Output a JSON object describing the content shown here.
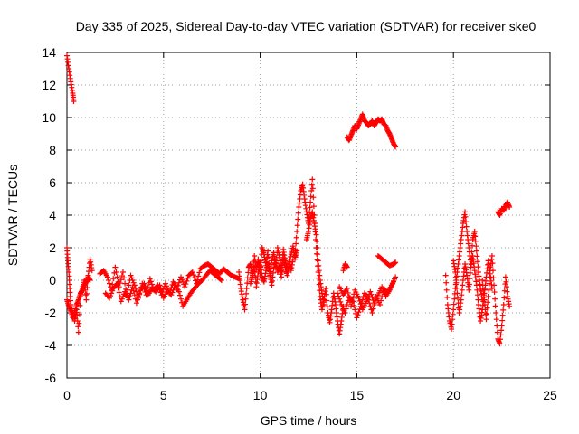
{
  "chart_data": {
    "type": "scatter",
    "title": "Day 335 of 2025, Sidereal Day-to-day VTEC variation (SDTVAR) for receiver ske0",
    "xlabel": "GPS time / hours",
    "ylabel": "SDTVAR / TECUs",
    "xlim": [
      0,
      25
    ],
    "ylim": [
      -6,
      14
    ],
    "x_ticks": [
      0,
      5,
      10,
      15,
      20,
      25
    ],
    "y_ticks": [
      -6,
      -4,
      -2,
      0,
      2,
      4,
      6,
      8,
      10,
      12,
      14
    ],
    "grid": true,
    "marker": "plus",
    "color": "#ff0000",
    "series": [
      {
        "name": "SDTVAR",
        "segments": [
          {
            "x": [
              0.0,
              0.1,
              0.2,
              0.3,
              0.35
            ],
            "y": [
              13.8,
              13.0,
              12.2,
              11.5,
              11.0
            ]
          },
          {
            "x": [
              0.0,
              0.05,
              0.1,
              0.15,
              0.2,
              0.3,
              0.4,
              0.5,
              0.6,
              0.7,
              0.8,
              0.9,
              1.0,
              1.1,
              1.2,
              1.3
            ],
            "y": [
              2.0,
              1.2,
              0.5,
              -0.5,
              -1.5,
              -2.0,
              -2.5,
              -1.8,
              -3.2,
              -1.0,
              -0.5,
              0.0,
              -1.2,
              0.3,
              1.3,
              0.6
            ]
          },
          {
            "x": [
              0.0,
              0.1,
              0.2,
              0.3,
              0.4,
              0.5,
              0.6,
              0.7,
              0.8,
              0.9,
              1.0,
              1.1,
              1.2
            ],
            "y": [
              -1.2,
              -1.6,
              -1.9,
              -2.3,
              -2.0,
              -1.5,
              -1.2,
              -0.8,
              -0.6,
              -0.3,
              -0.1,
              0.2,
              0.0
            ]
          },
          {
            "x": [
              1.7,
              1.9,
              2.1,
              2.3,
              2.5,
              2.7,
              2.9,
              3.1,
              3.3,
              3.5,
              3.7,
              3.9,
              4.1,
              4.3,
              4.5,
              4.7,
              4.9,
              5.1,
              5.3,
              5.5,
              5.7,
              5.9,
              6.1,
              6.3,
              6.5,
              6.7,
              6.9,
              7.1,
              7.3,
              7.5,
              7.7,
              7.9,
              8.1,
              8.3,
              8.5,
              8.7,
              8.9
            ],
            "y": [
              0.4,
              0.6,
              0.2,
              -0.6,
              0.8,
              -0.4,
              0.5,
              -0.9,
              0.3,
              -0.3,
              -1.1,
              -0.2,
              -0.9,
              0.1,
              -0.6,
              -0.3,
              -0.9,
              -0.2,
              -0.8,
              -0.1,
              -0.5,
              0.2,
              -0.4,
              0.3,
              0.5,
              -0.2,
              0.7,
              0.9,
              1.0,
              0.8,
              0.6,
              0.4,
              0.7,
              0.5,
              0.3,
              0.2,
              0.1
            ]
          },
          {
            "x": [
              2.0,
              2.2,
              2.4,
              2.6,
              2.8,
              3.0,
              3.2,
              3.4,
              3.6,
              3.8,
              4.0,
              4.2,
              4.4,
              4.6,
              4.8,
              5.0,
              5.2,
              5.4,
              5.6,
              5.8,
              6.0,
              6.2,
              6.4,
              6.6,
              6.8,
              7.0,
              7.2,
              7.4,
              7.6,
              7.8,
              8.0
            ],
            "y": [
              -0.8,
              -1.1,
              -0.5,
              -0.2,
              -1.3,
              -0.7,
              -1.2,
              -0.4,
              -1.4,
              -0.6,
              -0.2,
              -0.9,
              -0.5,
              -0.7,
              -0.3,
              -1.1,
              -0.6,
              -0.9,
              -0.3,
              -0.7,
              -1.6,
              -1.2,
              -0.8,
              -0.5,
              -0.2,
              0.0,
              0.3,
              0.6,
              0.4,
              0.2,
              0.0
            ]
          },
          {
            "x": [
              8.9,
              9.0,
              9.1,
              9.2,
              9.3,
              9.4,
              9.5,
              9.6,
              9.7,
              9.8,
              9.9,
              10.0,
              10.1,
              10.2,
              10.3,
              10.4,
              10.5,
              10.6,
              10.7,
              10.8,
              10.9,
              11.0,
              11.1,
              11.2,
              11.3,
              11.4,
              11.5,
              11.6,
              11.7,
              11.8,
              11.9
            ],
            "y": [
              0.5,
              -0.5,
              -1.2,
              -1.8,
              -0.5,
              0.8,
              1.0,
              0.2,
              1.5,
              0.7,
              1.3,
              0.4,
              2.0,
              1.6,
              0.9,
              1.8,
              0.3,
              1.2,
              1.7,
              0.8,
              2.0,
              1.4,
              0.6,
              1.9,
              1.2,
              0.5,
              1.0,
              1.6,
              2.1,
              1.3,
              1.8
            ]
          },
          {
            "x": [
              9.5,
              9.6,
              9.7,
              9.8,
              9.9,
              10.0,
              10.1,
              10.2,
              10.3,
              10.4,
              10.5,
              10.6,
              10.7,
              10.8,
              10.9,
              11.0,
              11.1,
              11.2,
              11.3,
              11.4,
              11.5,
              11.6,
              11.7
            ],
            "y": [
              -0.2,
              0.3,
              0.8,
              -0.4,
              0.5,
              1.1,
              0.2,
              -0.1,
              0.6,
              1.0,
              0.4,
              -0.3,
              0.7,
              1.2,
              0.5,
              0.9,
              0.2,
              1.4,
              0.8,
              0.3,
              1.1,
              0.6,
              1.3
            ]
          },
          {
            "x": [
              11.8,
              11.9,
              12.0,
              12.1,
              12.2,
              12.3,
              12.4,
              12.5,
              12.6,
              12.7,
              12.8,
              12.9,
              13.0,
              13.1,
              13.2,
              13.3,
              13.4,
              13.5,
              13.6,
              13.7,
              13.8,
              13.9,
              14.0,
              14.1,
              14.2,
              14.3
            ],
            "y": [
              1.5,
              3.0,
              4.5,
              5.5,
              5.9,
              5.0,
              4.2,
              3.5,
              4.8,
              6.2,
              4.0,
              2.0,
              0.5,
              -1.0,
              -1.8,
              -1.2,
              -0.5,
              -2.0,
              -2.6,
              -1.8,
              -0.8,
              -1.5,
              -2.5,
              -3.3,
              -2.5,
              -1.6
            ]
          },
          {
            "x": [
              12.4,
              12.5,
              12.6,
              12.7,
              12.8,
              12.9,
              13.0,
              13.1,
              13.2,
              13.3
            ],
            "y": [
              2.5,
              3.0,
              3.8,
              4.2,
              3.5,
              2.8,
              1.2,
              0.0,
              -0.8,
              -1.5
            ]
          },
          {
            "x": [
              14.3,
              14.4,
              14.5
            ],
            "y": [
              0.6,
              1.0,
              0.8
            ]
          },
          {
            "x": [
              14.0,
              14.2,
              14.4,
              14.6,
              14.8,
              15.0,
              15.2,
              15.4,
              15.6,
              15.8,
              16.0,
              16.2,
              16.4,
              16.6,
              16.8,
              17.0
            ],
            "y": [
              -0.8,
              -1.5,
              -2.0,
              -1.0,
              -1.3,
              -2.3,
              -1.6,
              -0.8,
              -1.2,
              -2.0,
              -1.0,
              -1.5,
              -0.5,
              -0.8,
              -0.3,
              0.2
            ]
          },
          {
            "x": [
              14.1,
              14.3,
              14.5,
              14.7,
              14.9,
              15.1,
              15.3,
              15.5,
              15.7,
              15.9,
              16.1,
              16.3,
              16.5,
              16.7,
              16.9
            ],
            "y": [
              -0.4,
              -0.9,
              -0.5,
              -1.6,
              -0.6,
              -1.1,
              -1.8,
              -1.3,
              -0.7,
              -1.4,
              -0.9,
              -0.4,
              -1.0,
              -0.6,
              -0.1
            ]
          },
          {
            "x": [
              16.1,
              16.3,
              16.5,
              16.7,
              16.9,
              17.0
            ],
            "y": [
              1.5,
              1.3,
              1.1,
              0.9,
              1.0,
              1.1
            ]
          },
          {
            "x": [
              14.5,
              14.6,
              14.7,
              14.8,
              14.9,
              15.0,
              15.1,
              15.2,
              15.3,
              15.4,
              15.5,
              15.6,
              15.7,
              15.8,
              15.9,
              16.0,
              16.1,
              16.2,
              16.3,
              16.4,
              16.5,
              16.6,
              16.7,
              16.8,
              16.9,
              17.0
            ],
            "y": [
              8.8,
              8.6,
              8.9,
              9.2,
              9.5,
              9.3,
              9.6,
              9.9,
              10.2,
              9.8,
              9.7,
              9.5,
              9.6,
              9.8,
              9.5,
              9.7,
              9.9,
              9.8,
              9.9,
              9.6,
              9.5,
              9.2,
              9.0,
              8.7,
              8.4,
              8.2
            ]
          },
          {
            "x": [
              19.6,
              19.7,
              19.8,
              19.9,
              20.0,
              20.1,
              20.2,
              20.3,
              20.4,
              20.5,
              20.6,
              20.7,
              20.8,
              20.9,
              21.0,
              21.1,
              21.2,
              21.3,
              21.4,
              21.5
            ],
            "y": [
              0.3,
              -1.5,
              -2.5,
              -3.0,
              -1.8,
              -0.5,
              0.5,
              1.5,
              2.5,
              3.5,
              4.2,
              3.0,
              2.0,
              1.0,
              2.5,
              3.0,
              1.8,
              0.5,
              -0.5,
              -1.2
            ]
          },
          {
            "x": [
              20.0,
              20.1,
              20.2,
              20.3,
              20.4,
              20.5,
              20.6,
              20.7,
              20.8,
              20.9,
              21.0,
              21.1,
              21.2,
              21.3,
              21.4,
              21.5,
              21.6,
              21.7,
              21.8,
              21.9,
              22.0
            ],
            "y": [
              1.2,
              0.5,
              -0.8,
              -2.0,
              -1.2,
              0.0,
              1.0,
              0.3,
              -0.6,
              0.8,
              1.5,
              0.6,
              -0.3,
              -1.5,
              -2.5,
              -1.8,
              -0.8,
              0.2,
              1.2,
              0.4,
              -0.5
            ]
          },
          {
            "x": [
              21.5,
              21.6,
              21.7,
              21.8,
              21.9,
              22.0,
              22.1,
              22.2,
              22.3,
              22.4,
              22.5,
              22.6,
              22.7,
              22.8,
              22.9
            ],
            "y": [
              0.0,
              -1.2,
              -2.4,
              -1.0,
              0.6,
              1.5,
              -0.3,
              -2.0,
              -3.6,
              -3.9,
              -2.8,
              -1.5,
              0.2,
              -1.0,
              -1.6
            ]
          },
          {
            "x": [
              22.3,
              22.4,
              22.5,
              22.6,
              22.7,
              22.8,
              22.9
            ],
            "y": [
              4.2,
              4.0,
              4.4,
              4.3,
              4.6,
              4.8,
              4.5
            ]
          }
        ]
      }
    ]
  }
}
